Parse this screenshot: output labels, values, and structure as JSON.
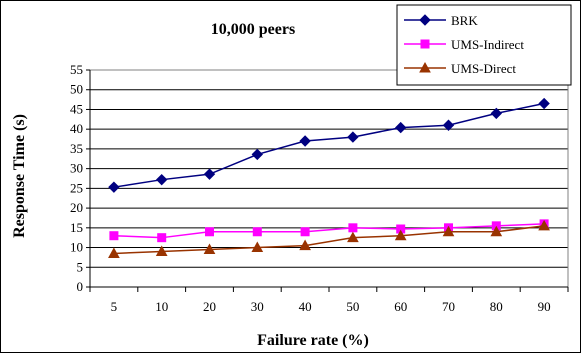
{
  "chart_data": {
    "type": "line",
    "title": "10,000 peers",
    "xlabel": "Failure rate (%)",
    "ylabel": "Response Time (s)",
    "categories": [
      "5",
      "10",
      "20",
      "30",
      "40",
      "50",
      "60",
      "70",
      "80",
      "90"
    ],
    "ylim": [
      0,
      55
    ],
    "yticks": [
      0,
      5,
      10,
      15,
      20,
      25,
      30,
      35,
      40,
      45,
      50,
      55
    ],
    "grid": true,
    "legend_position": "top-right",
    "series": [
      {
        "name": "BRK",
        "color": "#000080",
        "marker": "diamond",
        "values": [
          25.3,
          27.2,
          28.6,
          33.6,
          37.0,
          38.0,
          40.4,
          41.0,
          44.0,
          46.5
        ]
      },
      {
        "name": "UMS-Indirect",
        "color": "#FF00FF",
        "marker": "square",
        "values": [
          13.0,
          12.5,
          14.0,
          14.0,
          14.0,
          15.0,
          14.7,
          15.0,
          15.5,
          16.0
        ]
      },
      {
        "name": "UMS-Direct",
        "color": "#993300",
        "marker": "triangle",
        "values": [
          8.5,
          9.0,
          9.5,
          10.0,
          10.5,
          12.5,
          13.0,
          14.0,
          14.0,
          15.5
        ]
      }
    ]
  }
}
